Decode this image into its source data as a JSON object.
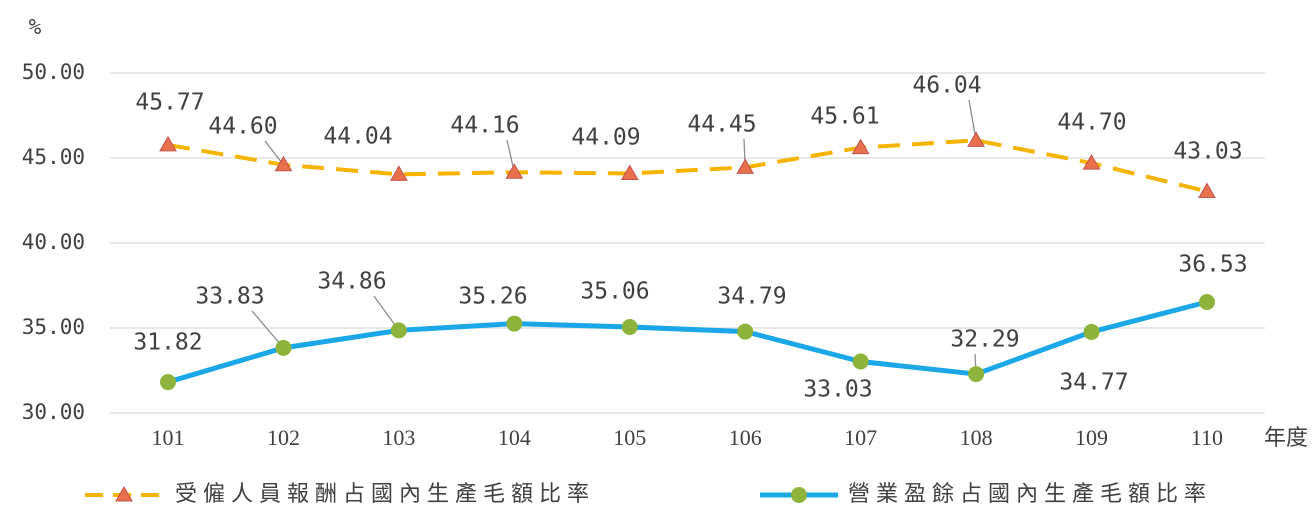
{
  "chart_data": {
    "type": "line",
    "y_axis_label": "%",
    "x_axis_label": "年度",
    "categories": [
      "101",
      "102",
      "103",
      "104",
      "105",
      "106",
      "107",
      "108",
      "109",
      "110"
    ],
    "ylim": [
      30,
      50
    ],
    "yticks": [
      {
        "value": 30,
        "label": "30.00"
      },
      {
        "value": 35,
        "label": "35.00"
      },
      {
        "value": 40,
        "label": "40.00"
      },
      {
        "value": 45,
        "label": "45.00"
      },
      {
        "value": 50,
        "label": "50.00"
      }
    ],
    "grid": true,
    "legend": "bottom",
    "series": [
      {
        "name": "受僱人員報酬占國內生產毛額比率",
        "color": "#f5b400",
        "marker_color": "#e8704a",
        "dashed": true,
        "marker": "triangle",
        "values": [
          45.77,
          44.6,
          44.04,
          44.16,
          44.09,
          44.45,
          45.61,
          46.04,
          44.7,
          43.03
        ],
        "value_labels": [
          "45.77",
          "44.60",
          "44.04",
          "44.16",
          "44.09",
          "44.45",
          "45.61",
          "46.04",
          "44.70",
          "43.03"
        ]
      },
      {
        "name": "營業盈餘占國內生產毛額比率",
        "color": "#1aa7e8",
        "marker_color": "#8db33a",
        "dashed": false,
        "marker": "circle",
        "values": [
          31.82,
          33.83,
          34.86,
          35.26,
          35.06,
          34.79,
          33.03,
          32.29,
          34.77,
          36.53
        ],
        "value_labels": [
          "31.82",
          "33.83",
          "34.86",
          "35.26",
          "35.06",
          "34.79",
          "33.03",
          "32.29",
          "34.77",
          "36.53"
        ]
      }
    ]
  }
}
